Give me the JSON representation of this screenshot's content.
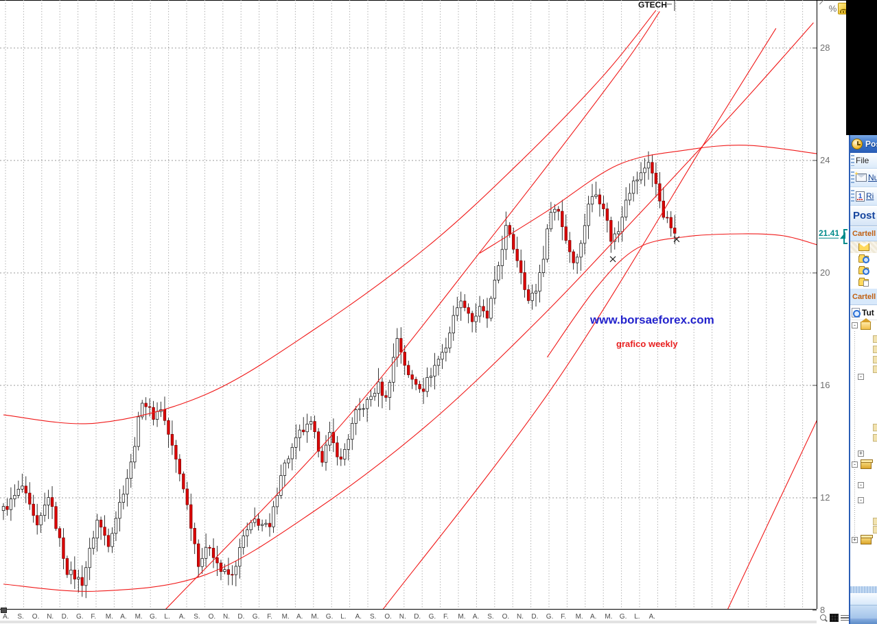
{
  "chart": {
    "symbol": "GTECH",
    "last_price": "21.41",
    "watermark": "www.borsaeforex.com",
    "note": "grafico weekly",
    "watermark_color": "#2323cc",
    "note_color": "#e82020",
    "up_color": "#ffffff",
    "down_color": "#dd0404",
    "curve_color": "#f01818",
    "last_price_color": "#008b8b",
    "toolbar_icons": [
      "trendline-icon",
      "percent-icon",
      "chart-style-icon"
    ],
    "bottom_icons": [
      "magnifier-icon",
      "pixel-grid-icon",
      "menu-lines-icon"
    ]
  },
  "chart_data": {
    "type": "candlestick",
    "title": "GTECH",
    "timeframe": "weekly",
    "ylabel": "",
    "xlabel": "",
    "ylim": [
      8,
      29.7
    ],
    "y_ticks": [
      28,
      24,
      20,
      16,
      12,
      8
    ],
    "grid": true,
    "weeks_total": 180,
    "last_close": 21.41,
    "low_extreme": {
      "week": 21,
      "price": 8.8
    },
    "high_extreme": {
      "week": 172,
      "price": 24.2
    },
    "month_labels": [
      "A.",
      "S.",
      "O.",
      "N.",
      "D.",
      "G.",
      "F.",
      "M.",
      "A.",
      "M.",
      "G.",
      "L.",
      "A.",
      "S.",
      "O.",
      "N.",
      "D.",
      "G.",
      "F.",
      "M.",
      "A.",
      "M.",
      "G.",
      "L.",
      "A.",
      "S.",
      "O.",
      "N.",
      "D.",
      "G.",
      "F.",
      "M.",
      "A.",
      "S.",
      "O.",
      "N.",
      "D.",
      "G.",
      "F.",
      "M.",
      "A.",
      "M.",
      "G.",
      "L.",
      "A."
    ],
    "close_anchors": [
      [
        0,
        11.6
      ],
      [
        1,
        11.7
      ],
      [
        5,
        12.4
      ],
      [
        9,
        10.9
      ],
      [
        12,
        12.1
      ],
      [
        17,
        9.4
      ],
      [
        21,
        9.0
      ],
      [
        25,
        11.2
      ],
      [
        28,
        10.4
      ],
      [
        34,
        13.2
      ],
      [
        37,
        15.5
      ],
      [
        40,
        14.9
      ],
      [
        42,
        15.2
      ],
      [
        48,
        12.4
      ],
      [
        52,
        9.7
      ],
      [
        55,
        10.3
      ],
      [
        58,
        9.4
      ],
      [
        61,
        9.2
      ],
      [
        64,
        10.6
      ],
      [
        67,
        11.2
      ],
      [
        71,
        10.9
      ],
      [
        74,
        12.9
      ],
      [
        79,
        14.3
      ],
      [
        82,
        14.6
      ],
      [
        85,
        13.4
      ],
      [
        87,
        14.2
      ],
      [
        90,
        13.3
      ],
      [
        94,
        15.0
      ],
      [
        97,
        15.4
      ],
      [
        100,
        16.0
      ],
      [
        102,
        15.5
      ],
      [
        105,
        17.7
      ],
      [
        108,
        16.3
      ],
      [
        112,
        15.9
      ],
      [
        115,
        16.7
      ],
      [
        118,
        17.4
      ],
      [
        121,
        18.9
      ],
      [
        123,
        18.9
      ],
      [
        125,
        18.3
      ],
      [
        127,
        18.7
      ],
      [
        129,
        18.4
      ],
      [
        131,
        19.6
      ],
      [
        134,
        21.6
      ],
      [
        136,
        20.9
      ],
      [
        138,
        20.1
      ],
      [
        140,
        19.0
      ],
      [
        142,
        19.4
      ],
      [
        144,
        20.6
      ],
      [
        146,
        22.3
      ],
      [
        148,
        22.2
      ],
      [
        150,
        21.2
      ],
      [
        152,
        20.4
      ],
      [
        154,
        21.0
      ],
      [
        156,
        22.5
      ],
      [
        158,
        22.8
      ],
      [
        160,
        22.4
      ],
      [
        162,
        21.2
      ],
      [
        164,
        21.5
      ],
      [
        166,
        22.7
      ],
      [
        168,
        23.2
      ],
      [
        170,
        23.5
      ],
      [
        172,
        24.0
      ],
      [
        174,
        23.1
      ],
      [
        176,
        22.1
      ],
      [
        178,
        21.6
      ],
      [
        179,
        21.41
      ]
    ],
    "overlays": [
      {
        "name": "upper-dome-band",
        "points": [
          [
            127,
            20.7
          ],
          [
            145,
            22.2
          ],
          [
            164,
            23.85
          ],
          [
            182,
            24.37
          ],
          [
            198,
            24.54
          ],
          [
            217,
            24.24
          ]
        ]
      },
      {
        "name": "lower-dome-band",
        "points": [
          [
            145,
            17.0
          ],
          [
            158,
            19.46
          ],
          [
            169,
            20.88
          ],
          [
            182,
            21.29
          ],
          [
            197,
            21.39
          ],
          [
            208,
            21.32
          ],
          [
            217,
            21.0
          ]
        ]
      },
      {
        "name": "mid-channel-curve",
        "points": [
          [
            0,
            14.95
          ],
          [
            25,
            14.66
          ],
          [
            54,
            15.68
          ],
          [
            83,
            18.0
          ],
          [
            113,
            20.93
          ],
          [
            138,
            23.98
          ],
          [
            160,
            27.02
          ],
          [
            174,
            29.34
          ]
        ]
      },
      {
        "name": "low-channel-curve",
        "points": [
          [
            0,
            8.93
          ],
          [
            25,
            8.68
          ],
          [
            54,
            9.27
          ],
          [
            83,
            11.54
          ],
          [
            113,
            14.59
          ],
          [
            142,
            18.24
          ],
          [
            169,
            22.02
          ],
          [
            197,
            26.05
          ],
          [
            216,
            28.9
          ]
        ]
      },
      {
        "name": "trend-line-1",
        "points": [
          [
            43,
            8.0
          ],
          [
            90,
            14.59
          ],
          [
            131,
            21.41
          ],
          [
            164,
            27.15
          ],
          [
            175,
            29.3
          ]
        ]
      },
      {
        "name": "trend-line-2",
        "points": [
          [
            101,
            8.0
          ],
          [
            147,
            16.05
          ],
          [
            189,
            25.07
          ],
          [
            206,
            28.7
          ]
        ]
      },
      {
        "name": "trend-line-3",
        "points": [
          [
            193,
            8.0
          ],
          [
            217,
            14.78
          ]
        ]
      }
    ],
    "cursor_marks": [
      [
        162.5,
        20.49
      ],
      [
        179.5,
        21.2
      ]
    ]
  },
  "outlook": {
    "window_title": "Post",
    "menu_file": "File",
    "btn_new": "Nu",
    "btn_sendreceive": "Ri",
    "pane_title": "Post",
    "favorites_header": "Cartell",
    "mailfolders_header": "Cartell",
    "search_all_label": "Tut",
    "folder_icons": [
      "inbox-open-envelope",
      "search-folder",
      "search-folder",
      "sent-items-folder"
    ],
    "tree_icons": [
      "personal-folders-home",
      "archive-box",
      "archive-box"
    ]
  }
}
